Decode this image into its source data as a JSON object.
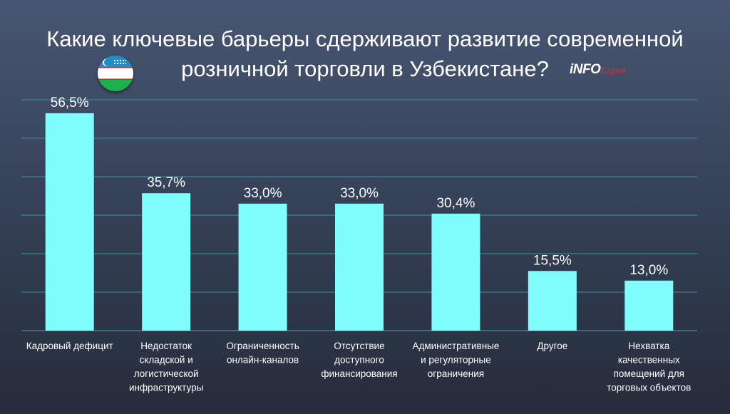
{
  "header": {
    "title_line1": "Какие ключевые барьеры сдерживают развитие современной",
    "title_line2": "розничной торговли в Узбекистане?"
  },
  "logo": {
    "main": "iNFO",
    "sub": "Ligne"
  },
  "colors": {
    "bar": "#7ffdfd",
    "gridline": "#3f9aa6",
    "text": "#ffffff"
  },
  "chart_data": {
    "type": "bar",
    "title": "Какие ключевые барьеры сдерживают развитие современной розничной торговли в Узбекистане?",
    "xlabel": "",
    "ylabel": "",
    "categories": [
      "Кадровый дефицит",
      "Недостаток складской и логистической инфраструктуры",
      "Ограниченность онлайн-каналов",
      "Отсутствие доступного финансирования",
      "Административные и регуляторные ограничения",
      "Другое",
      "Нехватка качественных помещений для торговых объектов"
    ],
    "category_lines": [
      [
        "Кадровый дефицит"
      ],
      [
        "Недостаток",
        "складской и",
        "логистической",
        "инфраструктуры"
      ],
      [
        "Ограниченность",
        "онлайн-каналов"
      ],
      [
        "Отсутствие",
        "доступного",
        "финансирования"
      ],
      [
        "Административные",
        "и регуляторные",
        "ограничения"
      ],
      [
        "Другое"
      ],
      [
        "Нехватка",
        "качественных",
        "помещений для",
        "торговых объектов"
      ]
    ],
    "values": [
      56.5,
      35.7,
      33.0,
      33.0,
      30.4,
      15.5,
      13.0
    ],
    "value_labels": [
      "56,5%",
      "35,7%",
      "33,0%",
      "33,0%",
      "30,4%",
      "15,5%",
      "13,0%"
    ],
    "ylim": [
      0,
      60
    ],
    "grid": true,
    "legend": "none"
  }
}
